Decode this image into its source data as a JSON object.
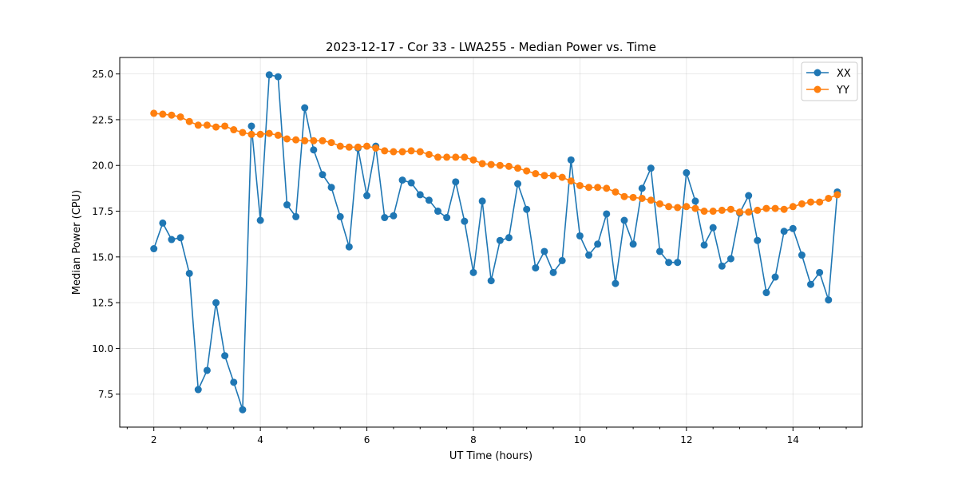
{
  "chart_data": {
    "type": "line",
    "title": "2023-12-17 - Cor 33 - LWA255 - Median Power vs. Time",
    "xlabel": "UT Time (hours)",
    "ylabel": "Median Power (CPU)",
    "xlim": [
      1.36,
      15.3
    ],
    "ylim": [
      5.7,
      25.9
    ],
    "xticks": [
      2,
      4,
      6,
      8,
      10,
      12,
      14
    ],
    "xtick_labels": [
      "2",
      "4",
      "6",
      "8",
      "10",
      "12",
      "14"
    ],
    "yticks": [
      7.5,
      10.0,
      12.5,
      15.0,
      17.5,
      20.0,
      22.5,
      25.0
    ],
    "ytick_labels": [
      "7.5",
      "10.0",
      "12.5",
      "15.0",
      "17.5",
      "20.0",
      "22.5",
      "25.0"
    ],
    "grid": true,
    "legend": "top-right",
    "x": [
      2.0,
      2.167,
      2.333,
      2.5,
      2.667,
      2.833,
      3.0,
      3.167,
      3.333,
      3.5,
      3.667,
      3.833,
      4.0,
      4.167,
      4.333,
      4.5,
      4.667,
      4.833,
      5.0,
      5.167,
      5.333,
      5.5,
      5.667,
      5.833,
      6.0,
      6.167,
      6.333,
      6.5,
      6.667,
      6.833,
      7.0,
      7.167,
      7.333,
      7.5,
      7.667,
      7.833,
      8.0,
      8.167,
      8.333,
      8.5,
      8.667,
      8.833,
      9.0,
      9.167,
      9.333,
      9.5,
      9.667,
      9.833,
      10.0,
      10.167,
      10.333,
      10.5,
      10.667,
      10.833,
      11.0,
      11.167,
      11.333,
      11.5,
      11.667,
      11.833,
      12.0,
      12.167,
      12.333,
      12.5,
      12.667,
      12.833,
      13.0,
      13.167,
      13.333,
      13.5,
      13.667,
      13.833,
      14.0,
      14.167,
      14.333,
      14.5,
      14.667,
      14.833
    ],
    "series": [
      {
        "name": "XX",
        "color": "#1f77b4",
        "values": [
          15.45,
          16.85,
          15.95,
          16.05,
          14.1,
          7.75,
          8.8,
          12.5,
          9.6,
          8.15,
          6.65,
          22.15,
          17.0,
          24.95,
          24.85,
          17.85,
          17.2,
          23.15,
          20.85,
          19.5,
          18.8,
          17.2,
          15.55,
          20.95,
          18.35,
          21.05,
          17.15,
          17.25,
          19.2,
          19.05,
          18.4,
          18.1,
          17.5,
          17.15,
          19.1,
          16.95,
          14.15,
          18.05,
          13.7,
          15.9,
          16.05,
          19.0,
          17.6,
          14.4,
          15.3,
          14.15,
          14.8,
          20.3,
          16.15,
          15.1,
          15.7,
          17.35,
          13.55,
          17.0,
          15.7,
          18.75,
          19.85,
          15.3,
          14.7,
          14.7,
          19.6,
          18.05,
          15.65,
          16.6,
          14.5,
          14.9,
          17.4,
          18.35,
          15.9,
          13.05,
          13.9,
          16.4,
          16.55,
          15.1,
          13.5,
          14.15,
          12.65,
          18.55
        ]
      },
      {
        "name": "YY",
        "color": "#ff7f0e",
        "values": [
          22.85,
          22.8,
          22.75,
          22.65,
          22.4,
          22.2,
          22.2,
          22.1,
          22.15,
          21.95,
          21.8,
          21.7,
          21.7,
          21.75,
          21.65,
          21.45,
          21.4,
          21.35,
          21.35,
          21.35,
          21.25,
          21.05,
          21.0,
          21.0,
          21.05,
          20.95,
          20.8,
          20.75,
          20.75,
          20.8,
          20.75,
          20.6,
          20.45,
          20.45,
          20.45,
          20.45,
          20.3,
          20.1,
          20.05,
          20.0,
          19.95,
          19.85,
          19.7,
          19.55,
          19.45,
          19.45,
          19.35,
          19.15,
          18.9,
          18.8,
          18.8,
          18.75,
          18.55,
          18.3,
          18.25,
          18.2,
          18.1,
          17.9,
          17.75,
          17.7,
          17.75,
          17.65,
          17.5,
          17.5,
          17.55,
          17.6,
          17.45,
          17.45,
          17.55,
          17.65,
          17.65,
          17.6,
          17.75,
          17.9,
          18.0,
          18.0,
          18.2,
          18.4
        ]
      }
    ]
  }
}
